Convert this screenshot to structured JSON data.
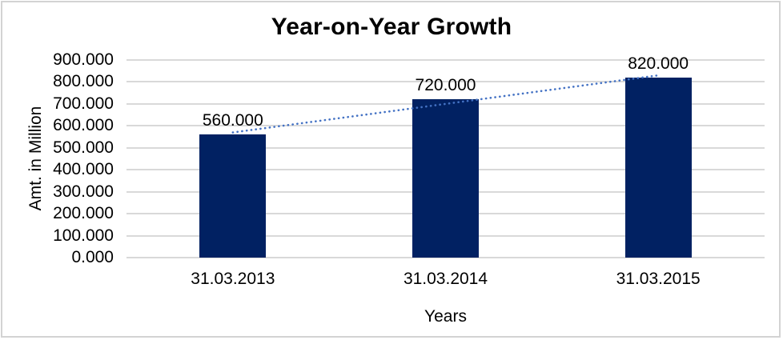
{
  "chart_data": {
    "type": "bar",
    "title": "Year-on-Year Growth",
    "categories": [
      "31.03.2013",
      "31.03.2014",
      "31.03.2015"
    ],
    "values": [
      560,
      720,
      820
    ],
    "value_labels": [
      "560.000",
      "720.000",
      "820.000"
    ],
    "xlabel": "Years",
    "ylabel": "Amt. in Million",
    "ylim": [
      0,
      900
    ],
    "ytick_step": 100,
    "ytick_labels": [
      "0.000",
      "100.000",
      "200.000",
      "300.000",
      "400.000",
      "500.000",
      "600.000",
      "700.000",
      "800.000",
      "900.000"
    ],
    "bar_color": "#012162",
    "gridline_color": "#d9d9d9",
    "grid": true,
    "legend": "none",
    "trendline": {
      "type": "linear",
      "style": "dotted",
      "color": "#4472c4"
    }
  }
}
